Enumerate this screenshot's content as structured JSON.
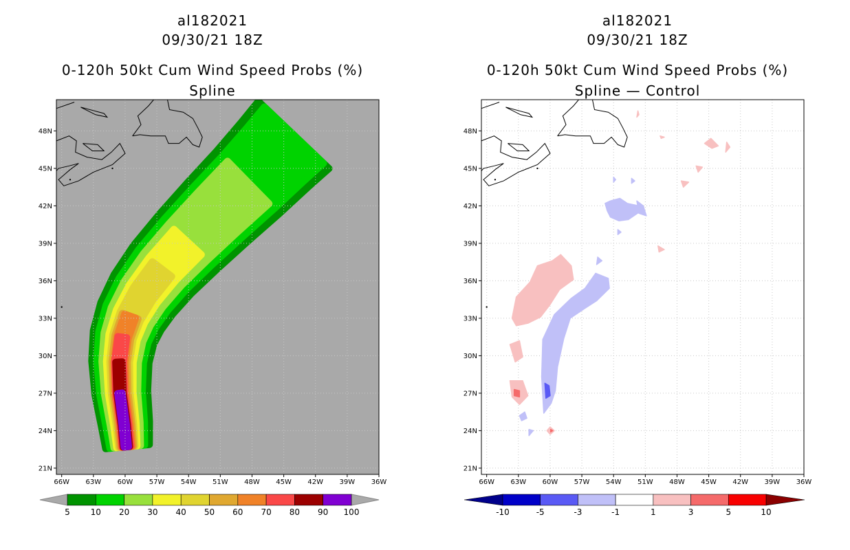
{
  "colors": {
    "ocean_left": "#a9a9a9",
    "ocean_right": "#ffffff",
    "coast": "#000000",
    "grid": "#c8c8c8"
  },
  "axes": {
    "y_ticks": [
      "48N",
      "45N",
      "42N",
      "39N",
      "36N",
      "33N",
      "30N",
      "27N",
      "24N",
      "21N"
    ],
    "x_ticks": [
      "66W",
      "63W",
      "60W",
      "57W",
      "54W",
      "51W",
      "48W",
      "45W",
      "42W",
      "39W",
      "36W"
    ]
  },
  "left_panel": {
    "storm_id": "al182021",
    "datetime": "09/30/21 18Z",
    "product": "0-120h 50kt Cum Wind Speed Probs (%)",
    "subtitle": "Spline",
    "colorbar": {
      "labels": [
        "5",
        "10",
        "20",
        "30",
        "40",
        "50",
        "60",
        "70",
        "80",
        "90",
        "100"
      ],
      "colors": [
        "#009300",
        "#00d300",
        "#98e03c",
        "#f2f22a",
        "#e0d430",
        "#e0a830",
        "#f08228",
        "#fa4848",
        "#9c0000",
        "#8000d2"
      ],
      "end_color": "#a9a9a9"
    },
    "contours": [
      {
        "level": "5",
        "color": "#009300"
      },
      {
        "level": "10",
        "color": "#00d300"
      },
      {
        "level": "20",
        "color": "#98e03c"
      },
      {
        "level": "30",
        "color": "#f2f22a"
      },
      {
        "level": "40",
        "color": "#e0d430"
      },
      {
        "level": "50",
        "color": "#e0a830"
      },
      {
        "level": "60",
        "color": "#f08228"
      },
      {
        "level": "70",
        "color": "#fa4848"
      },
      {
        "level": "80",
        "color": "#9c0000"
      },
      {
        "level": "90",
        "color": "#8000d2"
      }
    ]
  },
  "right_panel": {
    "storm_id": "al182021",
    "datetime": "09/30/21 18Z",
    "product": "0-120h 50kt Cum Wind Speed Probs (%)",
    "subtitle": "Spline — Control",
    "colorbar": {
      "labels": [
        "-10",
        "-5",
        "-3",
        "-1",
        "1",
        "3",
        "5",
        "10"
      ],
      "colors": [
        "#0000c8",
        "#5a5af5",
        "#c0c0f8",
        "#ffffff",
        "#f8c0c0",
        "#f56a6a",
        "#f80000"
      ],
      "low_color": "#00008b",
      "high_color": "#8b0000"
    }
  }
}
